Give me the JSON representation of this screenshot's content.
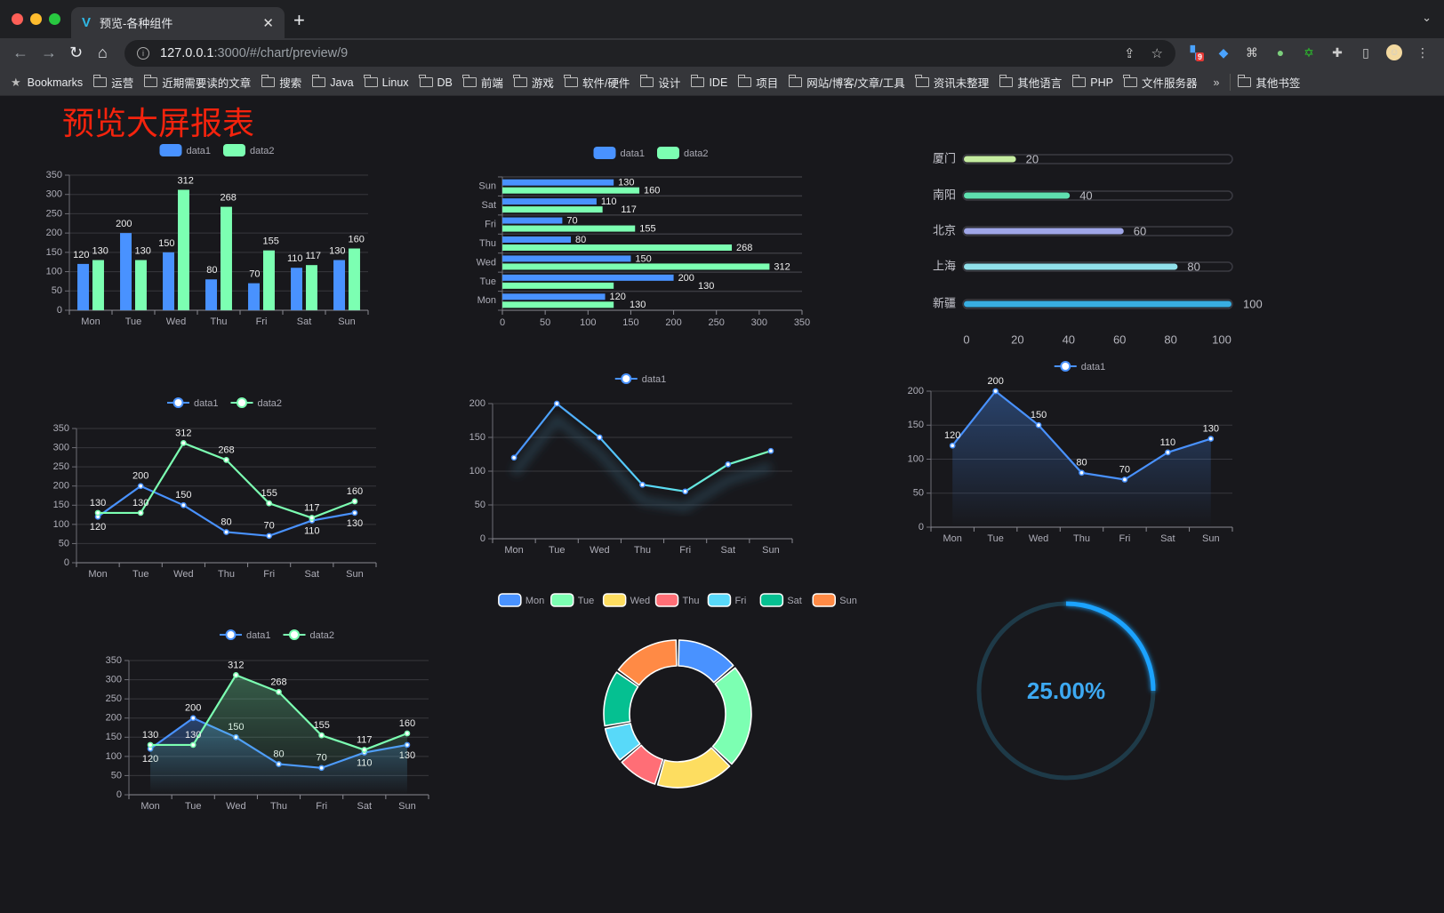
{
  "browser": {
    "tab_title": "预览-各种组件",
    "url_host": "127.0.0.1",
    "url_rest": ":3000/#/chart/preview/9",
    "extension_badge": "9",
    "bookmarks": [
      "Bookmarks",
      "运营",
      "近期需要读的文章",
      "搜索",
      "Java",
      "Linux",
      "DB",
      "前端",
      "游戏",
      "软件/硬件",
      "设计",
      "IDE",
      "项目",
      "网站/博客/文章/工具",
      "资讯未整理",
      "其他语言",
      "PHP",
      "文件服务器"
    ],
    "more": "»",
    "other_bookmarks": "其他书签"
  },
  "page": {
    "title": "预览大屏报表",
    "title_color": "#f5230d"
  },
  "colors": {
    "blue": "#4992ff",
    "green": "#7cffb2",
    "yellow": "#fddd60",
    "red": "#ff6e76",
    "cyan": "#58d9f9",
    "teal": "#05c091",
    "orange": "#ff8a45"
  },
  "chart_data": [
    {
      "type": "bar",
      "categories": [
        "Mon",
        "Tue",
        "Wed",
        "Thu",
        "Fri",
        "Sat",
        "Sun"
      ],
      "series": [
        {
          "name": "data1",
          "values": [
            120,
            200,
            150,
            80,
            70,
            110,
            130
          ]
        },
        {
          "name": "data2",
          "values": [
            130,
            130,
            312,
            268,
            155,
            117,
            160
          ]
        }
      ],
      "ylim": [
        0,
        350
      ],
      "yticks": [
        0,
        50,
        100,
        150,
        200,
        250,
        300,
        350
      ],
      "legend": "top",
      "data_labels": true
    },
    {
      "type": "bar",
      "orientation": "horizontal",
      "categories": [
        "Mon",
        "Tue",
        "Wed",
        "Thu",
        "Fri",
        "Sat",
        "Sun"
      ],
      "series": [
        {
          "name": "data1",
          "values": [
            120,
            200,
            150,
            80,
            70,
            110,
            130
          ]
        },
        {
          "name": "data2",
          "values": [
            130,
            130,
            312,
            268,
            155,
            117,
            160
          ]
        }
      ],
      "xlim": [
        0,
        350
      ],
      "xticks": [
        0,
        50,
        100,
        150,
        200,
        250,
        300,
        350
      ],
      "legend": "top",
      "data_labels": true
    },
    {
      "type": "bar",
      "orientation": "horizontal",
      "style": "progress",
      "categories": [
        "厦门",
        "南阳",
        "北京",
        "上海",
        "新疆"
      ],
      "values": [
        20,
        40,
        60,
        80,
        100
      ],
      "colors": [
        "#c5eca0",
        "#5fe0b0",
        "#9fa6e8",
        "#90e0ea",
        "#38aee2"
      ],
      "xlim": [
        0,
        100
      ],
      "xticks": [
        0,
        20,
        40,
        60,
        80,
        100
      ],
      "data_labels": true
    },
    {
      "type": "line",
      "categories": [
        "Mon",
        "Tue",
        "Wed",
        "Thu",
        "Fri",
        "Sat",
        "Sun"
      ],
      "series": [
        {
          "name": "data1",
          "values": [
            120,
            200,
            150,
            80,
            70,
            110,
            130
          ]
        },
        {
          "name": "data2",
          "values": [
            130,
            130,
            312,
            268,
            155,
            117,
            160
          ]
        }
      ],
      "ylim": [
        0,
        350
      ],
      "yticks": [
        0,
        50,
        100,
        150,
        200,
        250,
        300,
        350
      ],
      "legend": "top",
      "data_labels": true
    },
    {
      "type": "line",
      "categories": [
        "Mon",
        "Tue",
        "Wed",
        "Thu",
        "Fri",
        "Sat",
        "Sun"
      ],
      "series": [
        {
          "name": "data1",
          "values": [
            120,
            200,
            150,
            80,
            70,
            110,
            130
          ]
        }
      ],
      "ylim": [
        0,
        200
      ],
      "yticks": [
        0,
        50,
        100,
        150,
        200
      ],
      "legend": "top",
      "gradient_line": true,
      "data_labels": false
    },
    {
      "type": "area",
      "categories": [
        "Mon",
        "Tue",
        "Wed",
        "Thu",
        "Fri",
        "Sat",
        "Sun"
      ],
      "series": [
        {
          "name": "data1",
          "values": [
            120,
            200,
            150,
            80,
            70,
            110,
            130
          ]
        }
      ],
      "ylim": [
        0,
        200
      ],
      "yticks": [
        0,
        50,
        100,
        150,
        200
      ],
      "legend": "top",
      "data_labels": true
    },
    {
      "type": "area",
      "categories": [
        "Mon",
        "Tue",
        "Wed",
        "Thu",
        "Fri",
        "Sat",
        "Sun"
      ],
      "series": [
        {
          "name": "data1",
          "values": [
            120,
            200,
            150,
            80,
            70,
            110,
            130
          ]
        },
        {
          "name": "data2",
          "values": [
            130,
            130,
            312,
            268,
            155,
            117,
            160
          ]
        }
      ],
      "ylim": [
        0,
        350
      ],
      "yticks": [
        0,
        50,
        100,
        150,
        200,
        250,
        300,
        350
      ],
      "legend": "top",
      "data_labels": true
    },
    {
      "type": "pie",
      "donut": true,
      "categories": [
        "Mon",
        "Tue",
        "Wed",
        "Thu",
        "Fri",
        "Sat",
        "Sun"
      ],
      "values": [
        120,
        200,
        150,
        80,
        70,
        110,
        130
      ],
      "legend": "top"
    },
    {
      "type": "gauge",
      "value": 25,
      "label": "25.00%",
      "color": "#1aa3ff"
    }
  ]
}
